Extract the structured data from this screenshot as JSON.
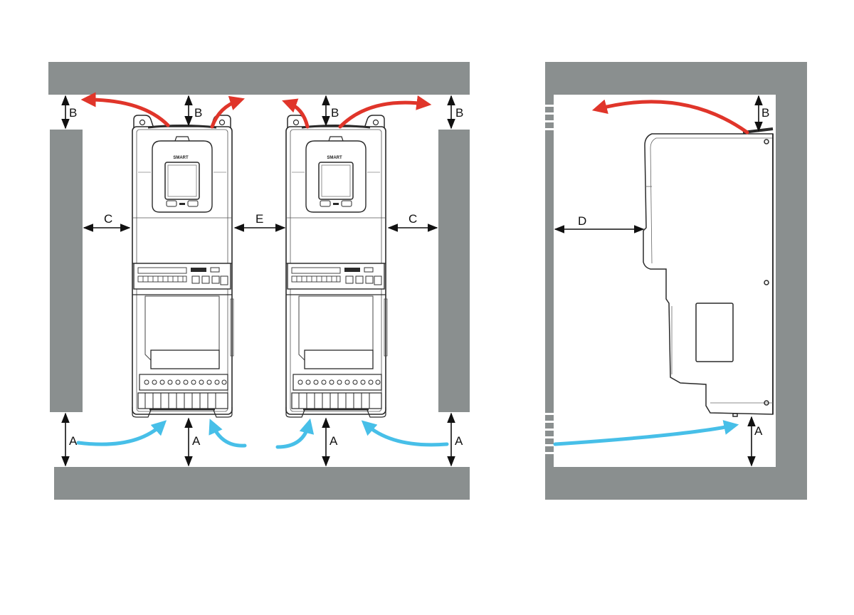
{
  "colors": {
    "wall": "#8a8f8f",
    "device_outline": "#2a2a2a",
    "exhaust_arrow": "#e0352a",
    "intake_arrow": "#47bfe8",
    "dimension_arrow": "#111111"
  },
  "icons": {
    "exhaust": "red-curved-arrow-icon",
    "intake": "blue-curved-arrow-icon",
    "dimension": "double-headed-arrow-icon"
  },
  "front_view": {
    "devices": [
      {
        "brand": "SMART"
      },
      {
        "brand": "SMART"
      }
    ],
    "dimensions": {
      "A_left": "A",
      "A_mid_left": "A",
      "A_mid_right": "A",
      "A_right": "A",
      "B_left": "B",
      "B_mid_left": "B",
      "B_mid_right": "B",
      "B_right": "B",
      "C_left": "C",
      "C_right": "C",
      "E": "E"
    }
  },
  "side_view": {
    "dimensions": {
      "B": "B",
      "D": "D",
      "A": "A"
    }
  }
}
